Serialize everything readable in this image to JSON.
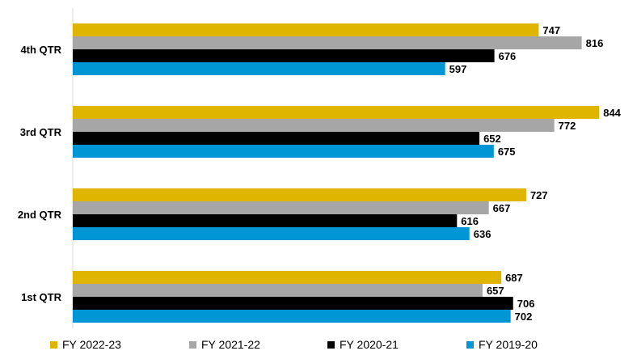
{
  "chart_data": {
    "type": "bar",
    "orientation": "horizontal",
    "categories": [
      "4th QTR",
      "3rd QTR",
      "2nd QTR",
      "1st QTR"
    ],
    "series": [
      {
        "name": "FY 2022-23",
        "color": "#E0B500",
        "values": [
          747,
          844,
          727,
          687
        ]
      },
      {
        "name": "FY 2021-22",
        "color": "#A6A6A6",
        "values": [
          816,
          772,
          667,
          657
        ]
      },
      {
        "name": "FY 2020-21",
        "color": "#000000",
        "values": [
          676,
          652,
          616,
          706
        ]
      },
      {
        "name": "FY 2019-20",
        "color": "#0096D6",
        "values": [
          597,
          675,
          636,
          702
        ]
      }
    ],
    "xlim": [
      0,
      870
    ],
    "grid": false,
    "legend_position": "bottom",
    "title": "",
    "xlabel": "",
    "ylabel": ""
  }
}
